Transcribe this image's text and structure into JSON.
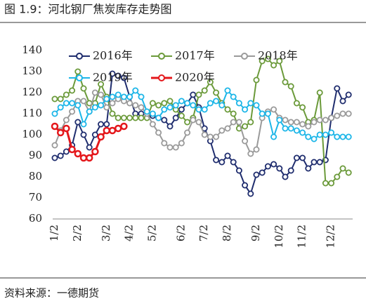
{
  "chart_data": {
    "type": "line",
    "title": "图 1.9：河北钢厂焦炭库存走势图",
    "source": "资料来源：一德期货",
    "categories": [
      "1/2",
      null,
      null,
      null,
      "2/2",
      null,
      null,
      null,
      null,
      "3/2",
      null,
      null,
      null,
      "4/2",
      null,
      null,
      null,
      "5/2",
      null,
      null,
      null,
      null,
      "6/2",
      null,
      null,
      null,
      "7/2",
      null,
      null,
      null,
      "8/2",
      null,
      null,
      null,
      null,
      "9/2",
      null,
      null,
      null,
      "10/2",
      null,
      null,
      null,
      "11/2",
      null,
      null,
      null,
      null,
      "12/2",
      null,
      null,
      null
    ],
    "series": [
      {
        "name": "2016年",
        "color": "#1f2d6e",
        "values": [
          89,
          90,
          92,
          95,
          106,
          100,
          94,
          100,
          105,
          105,
          129,
          128,
          127,
          118,
          110,
          110,
          110,
          109,
          108,
          107,
          104,
          108,
          112,
          115,
          119,
          113,
          103,
          97,
          88,
          87,
          90,
          87,
          83,
          76,
          72,
          81,
          82,
          85,
          86,
          84,
          80,
          83,
          89,
          89,
          84,
          87,
          87,
          88,
          108,
          122,
          116,
          119
        ]
      },
      {
        "name": "2017年",
        "color": "#6b9a3a",
        "values": [
          117,
          117,
          119,
          121,
          130,
          122,
          115,
          115,
          124,
          118,
          110,
          108,
          108,
          108,
          108,
          108,
          108,
          115,
          114,
          115,
          116,
          112,
          109,
          106,
          108,
          119,
          121,
          125,
          120,
          115,
          112,
          110,
          103,
          104,
          106,
          126,
          135,
          136,
          133,
          135,
          125,
          123,
          115,
          113,
          106,
          107,
          120,
          77,
          77,
          80,
          84,
          82
        ]
      },
      {
        "name": "2018年",
        "color": "#9a9a9a",
        "values": [
          95,
          102,
          107,
          111,
          116,
          116,
          111,
          120,
          119,
          113,
          115,
          117,
          116,
          115,
          114,
          113,
          110,
          105,
          101,
          96,
          94,
          94,
          96,
          101,
          107,
          106,
          100,
          99,
          99,
          102,
          103,
          106,
          106,
          97,
          91,
          93,
          108,
          111,
          112,
          108,
          107,
          106,
          106,
          105,
          104,
          106,
          107,
          107,
          108,
          109,
          110,
          110
        ]
      },
      {
        "name": "2019年",
        "color": "#1cb6e8",
        "values": [
          110,
          113,
          115,
          115,
          114,
          105,
          111,
          113,
          114,
          117,
          118,
          119,
          118,
          118,
          121,
          118,
          111,
          110,
          108,
          112,
          113,
          114,
          116,
          115,
          114,
          112,
          112,
          115,
          116,
          114,
          121,
          118,
          115,
          112,
          115,
          114,
          110,
          110,
          99,
          107,
          103,
          103,
          102,
          101,
          99,
          98,
          100,
          100,
          101,
          99,
          99,
          99
        ]
      },
      {
        "name": "2020年",
        "color": "#e4171b",
        "values": [
          104,
          101,
          103,
          93,
          91,
          89,
          89,
          92,
          99,
          102,
          102,
          103,
          104,
          null,
          null,
          null,
          null,
          null,
          null,
          null,
          null,
          null,
          null,
          null,
          null,
          null,
          null,
          null,
          null,
          null,
          null,
          null,
          null,
          null,
          null,
          null,
          null,
          null,
          null,
          null,
          null,
          null,
          null,
          null,
          null,
          null,
          null,
          null,
          null,
          null,
          null,
          null
        ]
      }
    ],
    "ylim": [
      60,
      140
    ],
    "yticks": [
      60,
      70,
      80,
      90,
      100,
      110,
      120,
      130,
      140
    ],
    "grid": false
  }
}
